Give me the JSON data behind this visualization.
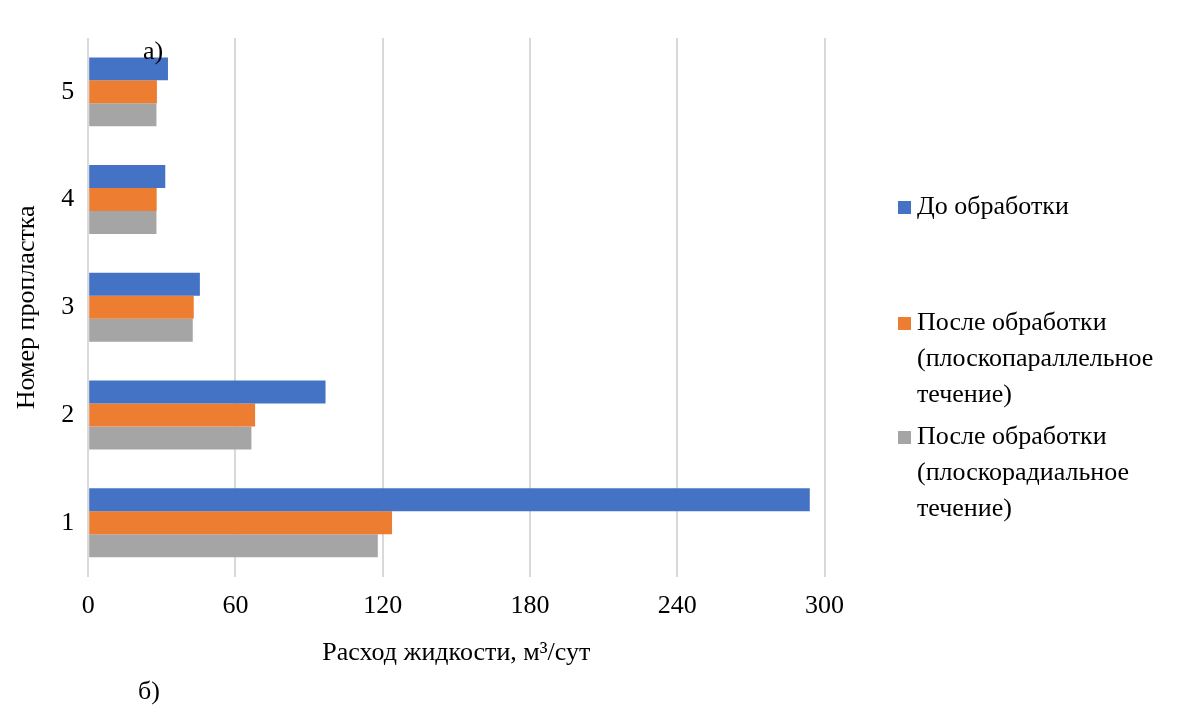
{
  "chart_data": {
    "type": "bar",
    "orientation": "horizontal",
    "categories": [
      "5",
      "4",
      "3",
      "2",
      "1"
    ],
    "series": [
      {
        "name": "До обработки",
        "color": "#4472c4",
        "values": [
          32.5,
          31.4,
          45.5,
          96.7,
          294
        ]
      },
      {
        "name": "После обработки (плоскопараллельное течение)",
        "color": "#ed7d31",
        "values": [
          28,
          27.9,
          43,
          68,
          123.8
        ]
      },
      {
        "name": "После обработки (плоскорадиальное течение)",
        "color": "#a5a5a5",
        "values": [
          27.8,
          27.8,
          42.6,
          66.5,
          118
        ]
      }
    ],
    "xlim": [
      0,
      300
    ],
    "xticks": [
      0,
      60,
      120,
      180,
      240,
      300
    ],
    "xlabel": "Расход жидкости, м³/сут",
    "ylabel": "Номер пропластка",
    "grid": "x",
    "legend": "right",
    "annotations": [
      "а)",
      "б)"
    ]
  }
}
